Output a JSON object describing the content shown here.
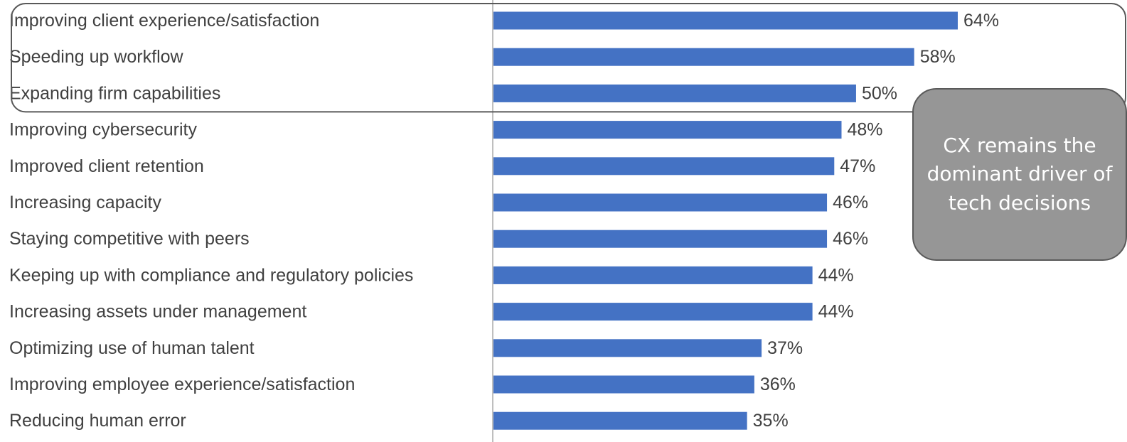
{
  "chart_data": {
    "type": "bar",
    "orientation": "horizontal",
    "title": "",
    "xlabel": "",
    "ylabel": "",
    "xlim": [
      0,
      64
    ],
    "grid": false,
    "categories": [
      "Improving client experience/satisfaction",
      "Speeding up workflow",
      "Expanding firm capabilities",
      "Improving cybersecurity",
      "Improved client retention",
      "Increasing capacity",
      "Staying competitive with peers",
      "Keeping up with compliance and regulatory policies",
      "Increasing assets under management",
      "Optimizing use of human talent",
      "Improving employee experience/satisfaction",
      "Reducing human error"
    ],
    "values": [
      64,
      58,
      50,
      48,
      47,
      46,
      46,
      44,
      44,
      37,
      36,
      35
    ],
    "value_labels": [
      "64%",
      "58%",
      "50%",
      "48%",
      "47%",
      "46%",
      "46%",
      "44%",
      "44%",
      "37%",
      "36%",
      "35%"
    ],
    "highlighted_categories": [
      0,
      1,
      2
    ],
    "annotation": "CX remains the dominant driver of tech decisions"
  },
  "colors": {
    "bar": "#4472C4",
    "label_text": "#404040",
    "axis_line": "#BFBFBF",
    "highlight_border": "#595959",
    "callout_fill": "#969696",
    "callout_text": "#FFFFFF"
  }
}
